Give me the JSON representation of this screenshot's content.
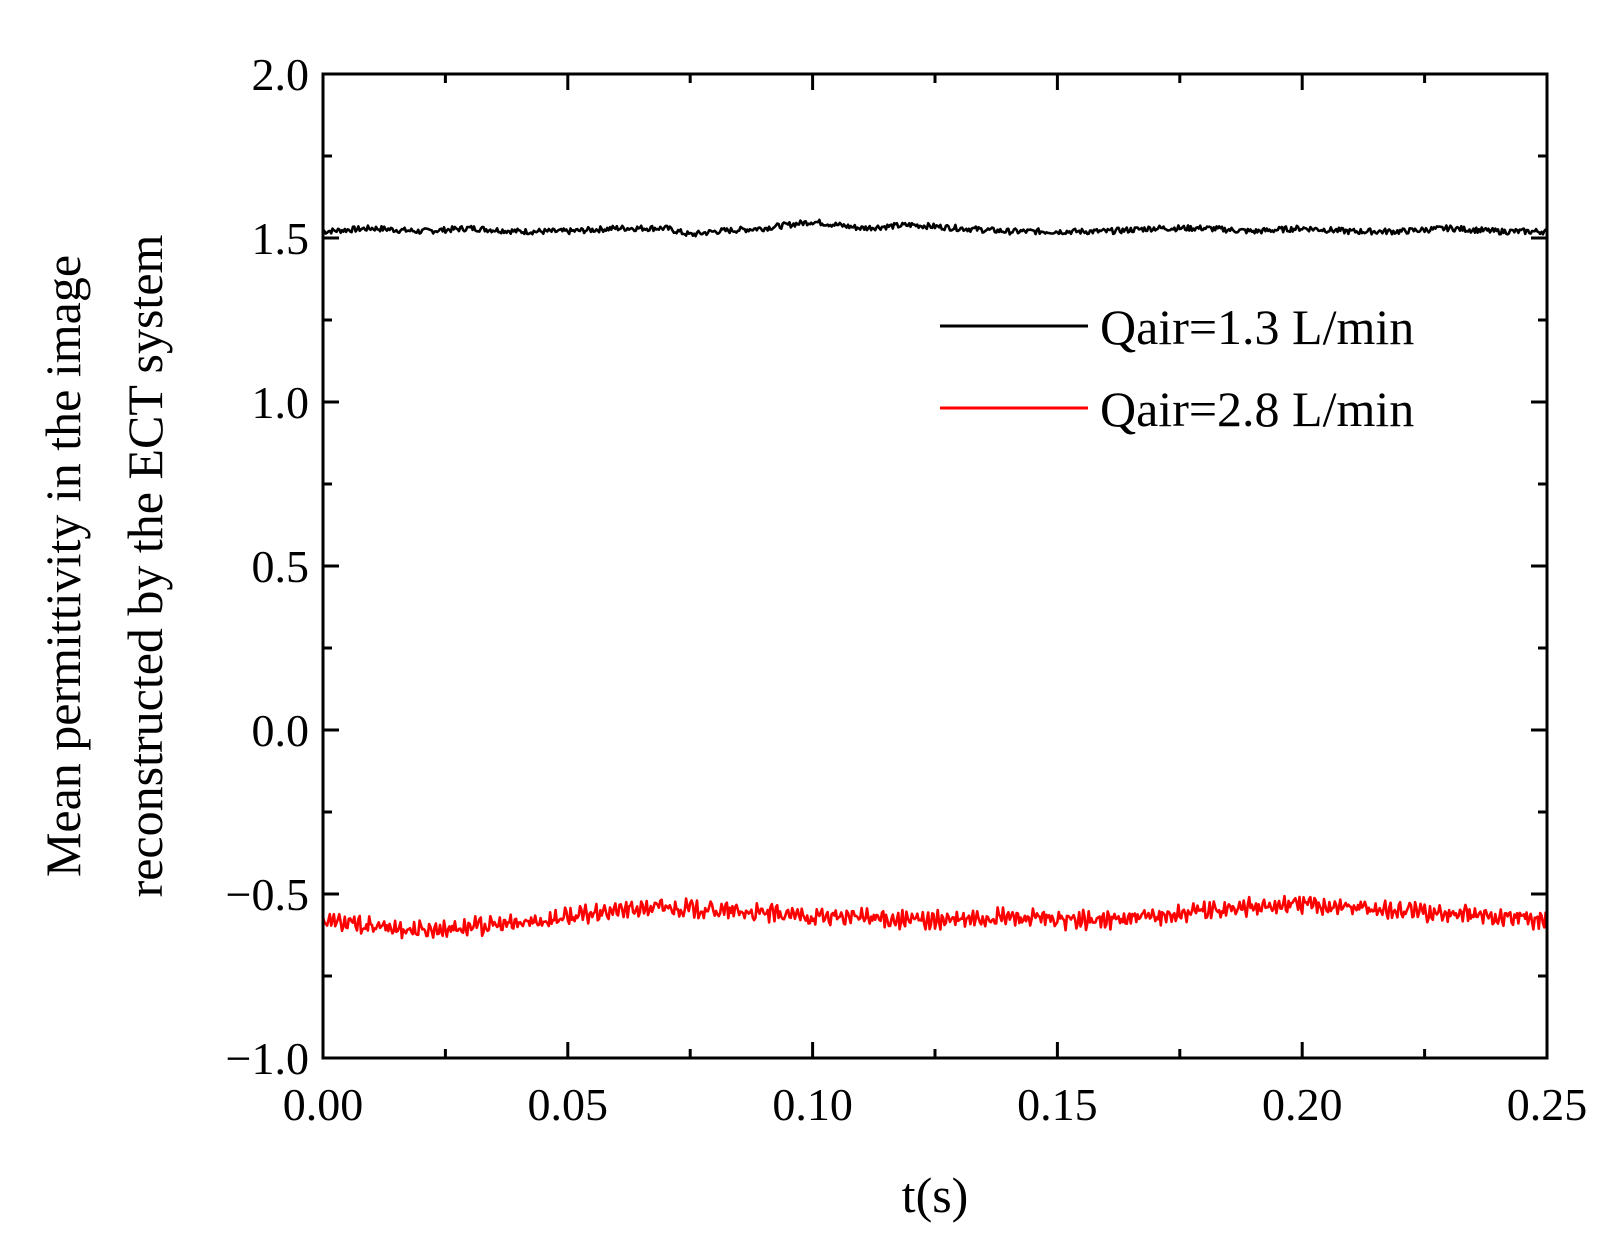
{
  "chart_data": {
    "type": "line",
    "title": "",
    "xlabel": "t(s)",
    "ylabel_lines": [
      "Mean permittivity in the image",
      "reconstructed by the ECT system"
    ],
    "xlim": [
      0.0,
      0.25
    ],
    "ylim": [
      -1.0,
      2.0
    ],
    "xticks": [
      0.0,
      0.05,
      0.1,
      0.15,
      0.2,
      0.25
    ],
    "xtick_labels": [
      "0.00",
      "0.05",
      "0.10",
      "0.15",
      "0.20",
      "0.25"
    ],
    "yticks": [
      -1.0,
      -0.5,
      0.0,
      0.5,
      1.0,
      1.5,
      2.0
    ],
    "ytick_labels": [
      "−1.0",
      "−0.5",
      "0.0",
      "0.5",
      "1.0",
      "1.5",
      "2.0"
    ],
    "x_minor_step": 0.025,
    "y_minor_step": 0.25,
    "grid": false,
    "legend_position": "upper-right",
    "series": [
      {
        "name": "Qair=1.3 L/min",
        "color": "#000000",
        "x": [
          0.0,
          0.01,
          0.02,
          0.03,
          0.04,
          0.05,
          0.06,
          0.07,
          0.075,
          0.08,
          0.09,
          0.1,
          0.11,
          0.12,
          0.13,
          0.14,
          0.15,
          0.16,
          0.17,
          0.18,
          0.19,
          0.2,
          0.21,
          0.22,
          0.23,
          0.24,
          0.25
        ],
        "values": [
          1.52,
          1.53,
          1.52,
          1.53,
          1.52,
          1.52,
          1.53,
          1.53,
          1.51,
          1.52,
          1.53,
          1.55,
          1.53,
          1.54,
          1.53,
          1.52,
          1.52,
          1.52,
          1.53,
          1.53,
          1.52,
          1.53,
          1.52,
          1.52,
          1.53,
          1.52,
          1.52
        ]
      },
      {
        "name": "Qair=2.8 L/min",
        "color": "#ff0000",
        "x": [
          0.0,
          0.01,
          0.02,
          0.03,
          0.04,
          0.05,
          0.06,
          0.07,
          0.08,
          0.09,
          0.1,
          0.11,
          0.12,
          0.13,
          0.14,
          0.15,
          0.16,
          0.17,
          0.18,
          0.19,
          0.2,
          0.21,
          0.22,
          0.23,
          0.24,
          0.25
        ],
        "values": [
          -0.58,
          -0.6,
          -0.61,
          -0.6,
          -0.59,
          -0.57,
          -0.55,
          -0.54,
          -0.55,
          -0.56,
          -0.57,
          -0.57,
          -0.58,
          -0.58,
          -0.57,
          -0.58,
          -0.58,
          -0.57,
          -0.55,
          -0.54,
          -0.53,
          -0.54,
          -0.55,
          -0.56,
          -0.57,
          -0.58
        ]
      }
    ]
  }
}
